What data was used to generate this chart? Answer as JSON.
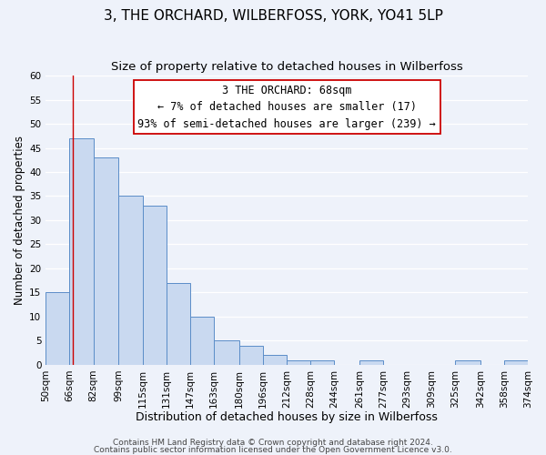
{
  "title": "3, THE ORCHARD, WILBERFOSS, YORK, YO41 5LP",
  "subtitle": "Size of property relative to detached houses in Wilberfoss",
  "xlabel": "Distribution of detached houses by size in Wilberfoss",
  "ylabel": "Number of detached properties",
  "bin_edges": [
    50,
    66,
    82,
    99,
    115,
    131,
    147,
    163,
    180,
    196,
    212,
    228,
    244,
    261,
    277,
    293,
    309,
    325,
    342,
    358,
    374
  ],
  "bin_labels": [
    "50sqm",
    "66sqm",
    "82sqm",
    "99sqm",
    "115sqm",
    "131sqm",
    "147sqm",
    "163sqm",
    "180sqm",
    "196sqm",
    "212sqm",
    "228sqm",
    "244sqm",
    "261sqm",
    "277sqm",
    "293sqm",
    "309sqm",
    "325sqm",
    "342sqm",
    "358sqm",
    "374sqm"
  ],
  "counts": [
    15,
    47,
    43,
    35,
    33,
    17,
    10,
    5,
    4,
    2,
    1,
    1,
    0,
    1,
    0,
    0,
    0,
    1,
    0,
    1
  ],
  "bar_color": "#c9d9f0",
  "bar_edge_color": "#5b8dc8",
  "ylim": [
    0,
    60
  ],
  "yticks": [
    0,
    5,
    10,
    15,
    20,
    25,
    30,
    35,
    40,
    45,
    50,
    55,
    60
  ],
  "vline_x": 68,
  "vline_color": "#cc0000",
  "annotation_line1": "3 THE ORCHARD: 68sqm",
  "annotation_line2": "← 7% of detached houses are smaller (17)",
  "annotation_line3": "93% of semi-detached houses are larger (239) →",
  "footer_line1": "Contains HM Land Registry data © Crown copyright and database right 2024.",
  "footer_line2": "Contains public sector information licensed under the Open Government Licence v3.0.",
  "background_color": "#eef2fa",
  "grid_color": "#ffffff",
  "title_fontsize": 11,
  "subtitle_fontsize": 9.5,
  "xlabel_fontsize": 9,
  "ylabel_fontsize": 8.5,
  "tick_fontsize": 7.5,
  "annotation_fontsize": 8.5,
  "footer_fontsize": 6.5
}
